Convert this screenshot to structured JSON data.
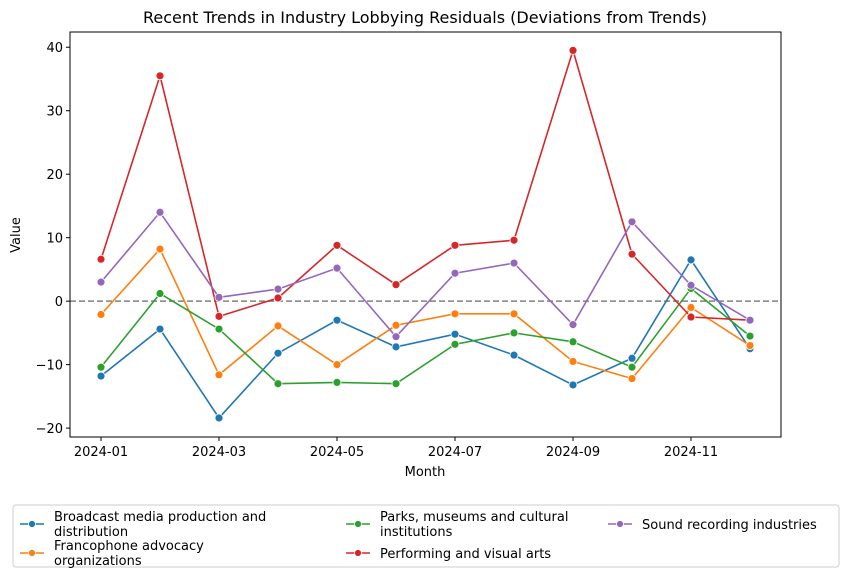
{
  "chart_data": {
    "type": "line",
    "title": "Recent Trends in Industry Lobbying Residuals (Deviations from Trends)",
    "xlabel": "Month",
    "ylabel": "Value",
    "x": [
      "2024-01",
      "2024-02",
      "2024-03",
      "2024-04",
      "2024-05",
      "2024-06",
      "2024-07",
      "2024-08",
      "2024-09",
      "2024-10",
      "2024-11",
      "2024-12"
    ],
    "xticks": [
      "2024-01",
      "2024-03",
      "2024-05",
      "2024-07",
      "2024-09",
      "2024-11"
    ],
    "ylim": [
      -21.4,
      42.4
    ],
    "yticks": [
      {
        "value": -20,
        "label": "−20"
      },
      {
        "value": -10,
        "label": "−10"
      },
      0,
      10,
      20,
      30,
      40
    ],
    "hline": 0,
    "legend": "bottom",
    "series": [
      {
        "name": "Broadcast media production and distribution",
        "color": "#1f77b4",
        "values": [
          -11.8,
          -4.4,
          -18.4,
          -8.2,
          -3.0,
          -7.2,
          -5.2,
          -8.5,
          -13.2,
          -9.0,
          6.5,
          -7.5
        ]
      },
      {
        "name": "Francophone advocacy organizations",
        "color": "#ff7f0e",
        "values": [
          -2.1,
          8.2,
          -11.6,
          -3.9,
          -10.0,
          -3.8,
          -2.0,
          -2.0,
          -9.5,
          -12.2,
          -1.0,
          -7.0
        ]
      },
      {
        "name": "Parks, museums and cultural institutions",
        "color": "#2ca02c",
        "values": [
          -10.4,
          1.2,
          -4.4,
          -13.0,
          -12.8,
          -13.0,
          -6.8,
          -5.0,
          -6.4,
          -10.4,
          2.0,
          -5.5
        ]
      },
      {
        "name": "Performing and visual arts",
        "color": "#d62728",
        "values": [
          6.6,
          35.5,
          -2.4,
          0.5,
          8.8,
          2.6,
          8.8,
          9.6,
          39.5,
          7.4,
          -2.5,
          -3.0
        ]
      },
      {
        "name": "Sound recording industries",
        "color": "#9467bd",
        "values": [
          3.0,
          14.0,
          0.6,
          1.9,
          5.2,
          -5.6,
          4.4,
          6.0,
          -3.7,
          12.5,
          2.5,
          -3.0
        ]
      }
    ]
  }
}
